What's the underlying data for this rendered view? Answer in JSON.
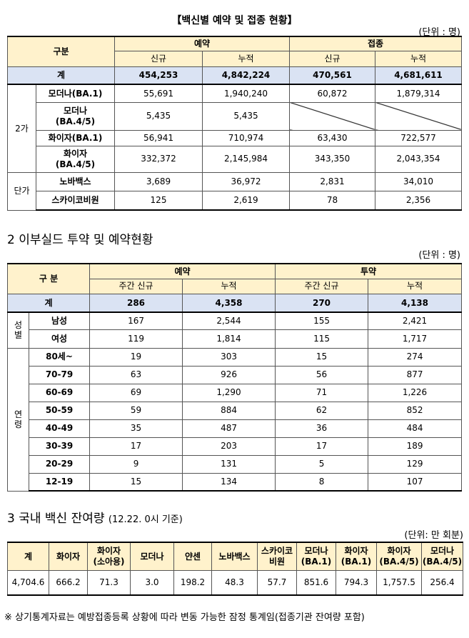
{
  "section1": {
    "title": "【백신별 예약 및 접종 현황】",
    "unit": "(단위 : 명)",
    "table": {
      "header": {
        "corner": "구분",
        "groups": [
          "예약",
          "접종"
        ],
        "cols": [
          "신규",
          "누적",
          "신규",
          "누적"
        ]
      },
      "total": {
        "label": "계",
        "values": [
          "454,253",
          "4,842,224",
          "470,561",
          "4,681,611"
        ]
      },
      "groups": [
        {
          "label": "2가",
          "rows": [
            {
              "label": "모더나(BA.1)",
              "values": [
                "55,691",
                "1,940,240",
                "60,872",
                "1,879,314"
              ]
            },
            {
              "label": "모더나\n(BA.4/5)",
              "values": [
                "5,435",
                "5,435",
                null,
                null
              ]
            },
            {
              "label": "화이자(BA.1)",
              "values": [
                "56,941",
                "710,974",
                "63,430",
                "722,577"
              ]
            },
            {
              "label": "화이자\n(BA.4/5)",
              "values": [
                "332,372",
                "2,145,984",
                "343,350",
                "2,043,354"
              ]
            }
          ]
        },
        {
          "label": "단가",
          "rows": [
            {
              "label": "노바백스",
              "values": [
                "3,689",
                "36,972",
                "2,831",
                "34,010"
              ]
            },
            {
              "label": "스카이코비원",
              "values": [
                "125",
                "2,619",
                "78",
                "2,356"
              ]
            }
          ]
        }
      ]
    }
  },
  "section2": {
    "title": "2 이부실드 투약 및 예약현황",
    "unit": "(단위 : 명)",
    "table": {
      "header": {
        "corner": "구 분",
        "groups": [
          "예약",
          "투약"
        ],
        "cols": [
          "주간 신규",
          "누적",
          "주간 신규",
          "누적"
        ]
      },
      "total": {
        "label": "계",
        "values": [
          "286",
          "4,358",
          "270",
          "4,138"
        ]
      },
      "groups": [
        {
          "label": "성\n별",
          "rows": [
            {
              "label": "남성",
              "values": [
                "167",
                "2,544",
                "155",
                "2,421"
              ]
            },
            {
              "label": "여성",
              "values": [
                "119",
                "1,814",
                "115",
                "1,717"
              ]
            }
          ]
        },
        {
          "label": "연\n령",
          "rows": [
            {
              "label": "80세~",
              "values": [
                "19",
                "303",
                "15",
                "274"
              ]
            },
            {
              "label": "70-79",
              "values": [
                "63",
                "926",
                "56",
                "877"
              ]
            },
            {
              "label": "60-69",
              "values": [
                "69",
                "1,290",
                "71",
                "1,226"
              ]
            },
            {
              "label": "50-59",
              "values": [
                "59",
                "884",
                "62",
                "852"
              ]
            },
            {
              "label": "40-49",
              "values": [
                "35",
                "487",
                "36",
                "484"
              ]
            },
            {
              "label": "30-39",
              "values": [
                "17",
                "203",
                "17",
                "189"
              ]
            },
            {
              "label": "20-29",
              "values": [
                "9",
                "131",
                "5",
                "129"
              ]
            },
            {
              "label": "12-19",
              "values": [
                "15",
                "134",
                "8",
                "107"
              ]
            }
          ]
        }
      ]
    }
  },
  "section3": {
    "title": "3 국내 백신 잔여량",
    "subtitle": "(12.22. 0시 기준)",
    "unit": "(단위: 만 회분)",
    "table": {
      "headers": [
        "계",
        "화이자",
        "화이자\n(소아용)",
        "모더나",
        "얀센",
        "노바백스",
        "스카이코\n비원",
        "모더나\n(BA.1)",
        "화이자\n(BA.1)",
        "화이자\n(BA.4/5)",
        "모더나\n(BA.4/5)"
      ],
      "values": [
        "4,704.6",
        "666.2",
        "71.3",
        "3.0",
        "198.2",
        "48.3",
        "57.7",
        "851.6",
        "794.3",
        "1,757.5",
        "256.4"
      ]
    }
  },
  "footnote": "※ 상기통계자료는 예방접종등록 상황에 따라 변동 가능한 잠정 통계임(접종기관 잔여량 포함)"
}
